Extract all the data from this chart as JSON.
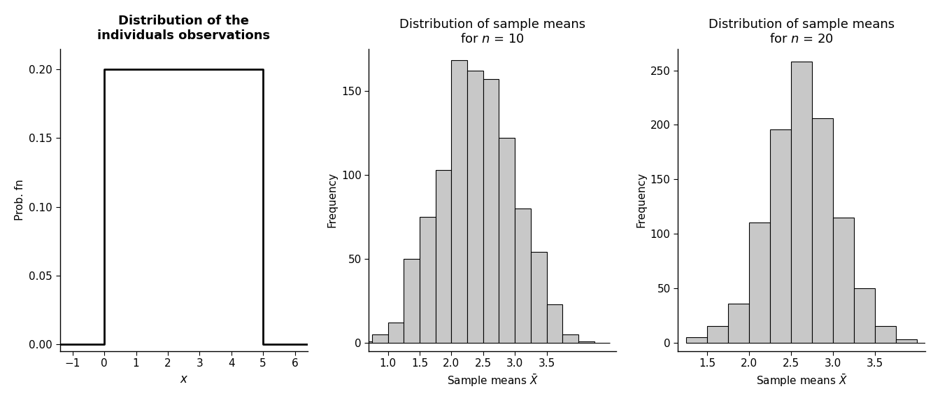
{
  "panel1": {
    "title": "Distribution of the\nindividuals observations",
    "xlabel": "x",
    "ylabel": "Prob. fn",
    "uniform_low": 0,
    "uniform_high": 5,
    "uniform_height": 0.2,
    "xlim": [
      -1.4,
      6.4
    ],
    "ylim": [
      -0.005,
      0.215
    ],
    "xticks": [
      -1,
      0,
      1,
      2,
      3,
      4,
      5,
      6
    ],
    "yticks": [
      0.0,
      0.05,
      0.1,
      0.15,
      0.2
    ]
  },
  "panel2": {
    "title_line1": "Distribution of sample means",
    "title_line2": "for $n$ = 10",
    "xlabel": "Sample means $\\bar{X}$",
    "ylabel": "Frequency",
    "bar_edges": [
      0.5,
      0.75,
      1.0,
      1.25,
      1.5,
      1.75,
      2.0,
      2.25,
      2.5,
      2.75,
      3.0,
      3.25,
      3.5,
      3.75,
      4.0,
      4.25,
      4.5
    ],
    "bar_heights": [
      1,
      5,
      12,
      50,
      75,
      103,
      168,
      162,
      157,
      122,
      80,
      54,
      23,
      5,
      1,
      0
    ],
    "xlim": [
      0.7,
      4.6
    ],
    "ylim": [
      -5,
      175
    ],
    "xticks": [
      1.0,
      1.5,
      2.0,
      2.5,
      3.0,
      3.5
    ],
    "yticks": [
      0,
      50,
      100,
      150
    ]
  },
  "panel3": {
    "title_line1": "Distribution of sample means",
    "title_line2": "for $n$ = 20",
    "xlabel": "Sample means $\\bar{X}$",
    "ylabel": "Frequency",
    "bar_edges": [
      1.25,
      1.5,
      1.75,
      2.0,
      2.25,
      2.5,
      2.75,
      3.0,
      3.25,
      3.5,
      3.75,
      4.0,
      4.25
    ],
    "bar_heights": [
      5,
      15,
      36,
      110,
      196,
      258,
      206,
      115,
      50,
      15,
      3,
      0
    ],
    "xlim": [
      1.15,
      4.1
    ],
    "ylim": [
      -8,
      270
    ],
    "xticks": [
      1.5,
      2.0,
      2.5,
      3.0,
      3.5
    ],
    "yticks": [
      0,
      50,
      100,
      150,
      200,
      250
    ]
  },
  "bar_color": "#c8c8c8",
  "bar_edgecolor": "#000000",
  "background_color": "#ffffff",
  "line_color": "#000000",
  "fontsize_title": 13,
  "fontsize_label": 11,
  "fontsize_tick": 11
}
